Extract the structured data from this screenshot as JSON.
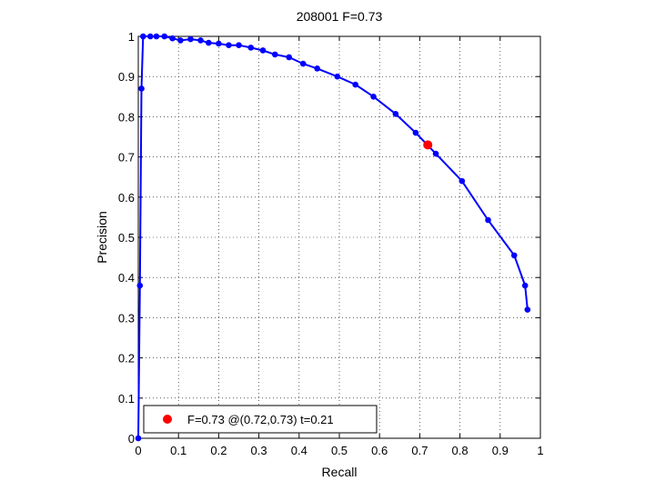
{
  "chart_data": {
    "type": "line",
    "title": "208001 F=0.73",
    "xlabel": "Recall",
    "ylabel": "Precision",
    "xlim": [
      0,
      1
    ],
    "ylim": [
      0,
      1
    ],
    "xticks": [
      "0",
      "0.1",
      "0.2",
      "0.3",
      "0.4",
      "0.5",
      "0.6",
      "0.7",
      "0.8",
      "0.9",
      "1"
    ],
    "yticks": [
      "0",
      "0.1",
      "0.2",
      "0.3",
      "0.4",
      "0.5",
      "0.6",
      "0.7",
      "0.8",
      "0.9",
      "1"
    ],
    "grid": true,
    "grid_style": "dotted",
    "legend_position": "bottom-left",
    "series": [
      {
        "color": "#0000ff",
        "marker": "dot",
        "points": [
          [
            0.0,
            0.0
          ],
          [
            0.004,
            0.38
          ],
          [
            0.008,
            0.87
          ],
          [
            0.012,
            1.0
          ],
          [
            0.03,
            1.0
          ],
          [
            0.045,
            1.0
          ],
          [
            0.065,
            1.0
          ],
          [
            0.085,
            0.995
          ],
          [
            0.105,
            0.99
          ],
          [
            0.13,
            0.993
          ],
          [
            0.155,
            0.99
          ],
          [
            0.175,
            0.984
          ],
          [
            0.2,
            0.982
          ],
          [
            0.225,
            0.978
          ],
          [
            0.25,
            0.978
          ],
          [
            0.28,
            0.972
          ],
          [
            0.31,
            0.965
          ],
          [
            0.34,
            0.955
          ],
          [
            0.375,
            0.948
          ],
          [
            0.41,
            0.932
          ],
          [
            0.445,
            0.92
          ],
          [
            0.495,
            0.9
          ],
          [
            0.54,
            0.88
          ],
          [
            0.585,
            0.85
          ],
          [
            0.64,
            0.807
          ],
          [
            0.69,
            0.76
          ],
          [
            0.74,
            0.708
          ],
          [
            0.805,
            0.64
          ],
          [
            0.87,
            0.543
          ],
          [
            0.935,
            0.455
          ],
          [
            0.962,
            0.38
          ],
          [
            0.968,
            0.32
          ]
        ]
      }
    ],
    "best_point": {
      "recall": 0.72,
      "precision": 0.73,
      "color": "#ff0000",
      "label": "F=0.73 @(0.72,0.73) t=0.21"
    }
  }
}
